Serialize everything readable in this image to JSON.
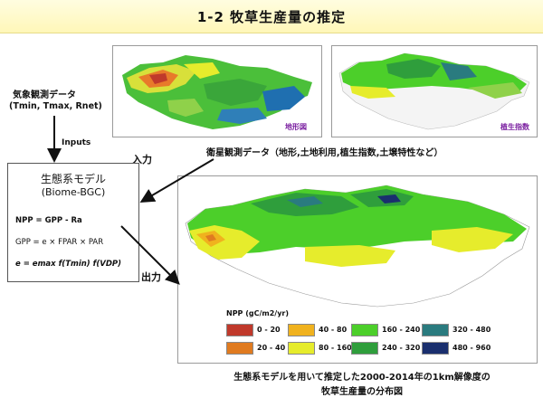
{
  "title": "1-2 牧草生産量の推定",
  "inputs": {
    "weather_label": "気象観測データ",
    "weather_vars": "(Tmin, Tmax, Rnet)",
    "inputs_label": "Inputs"
  },
  "maps": {
    "topo_caption": "地形図",
    "veg_caption": "植生指数",
    "satellite_label": "衛星観測データ（地形,土地利用,植生指数,土壌特性など）"
  },
  "arrows": {
    "input_label": "入力",
    "output_label": "出力"
  },
  "model": {
    "name": "生態系モデル",
    "name_en": "(Biome-BGC)",
    "eq1": "NPP = GPP - Ra",
    "eq2": "GPP = e × FPAR × PAR",
    "eq3": "e = emax f(Tmin) f(VDP)"
  },
  "legend": {
    "title": "NPP (gC/m2/yr)",
    "items": [
      {
        "label": "0 - 20",
        "color": "#c0392b"
      },
      {
        "label": "20 - 40",
        "color": "#e07b20"
      },
      {
        "label": "40 - 80",
        "color": "#f0b21e"
      },
      {
        "label": "80 - 160",
        "color": "#e6ec2c"
      },
      {
        "label": "160 - 240",
        "color": "#4ccf2a"
      },
      {
        "label": "240 - 320",
        "color": "#2f9e3c"
      },
      {
        "label": "320 - 480",
        "color": "#2a7b7f"
      },
      {
        "label": "480 - 960",
        "color": "#1a2f6e"
      }
    ]
  },
  "caption": {
    "line1": "生態系モデルを用いて推定した2000-2014年の1km解像度の",
    "line2": "牧草生産量の分布図"
  }
}
